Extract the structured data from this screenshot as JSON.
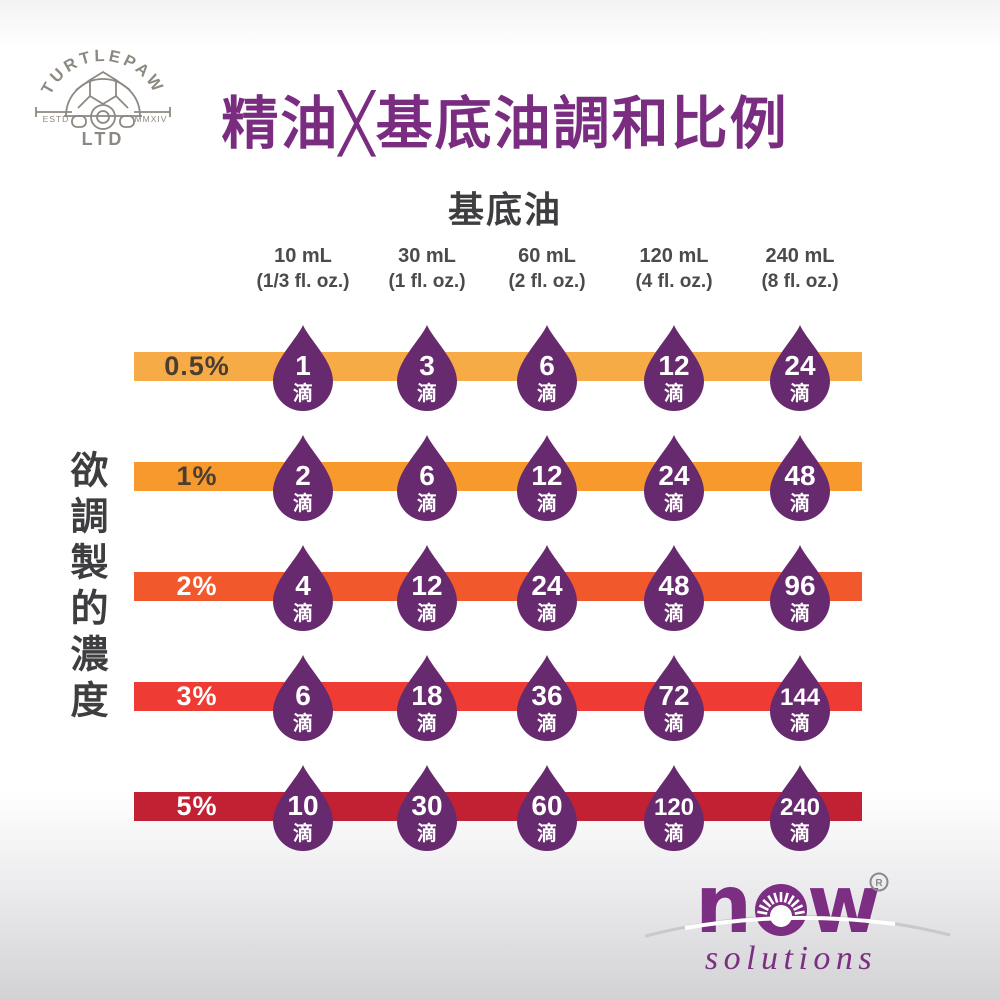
{
  "brand": {
    "turtlepaw": {
      "arc_text": "TURTLEPAW",
      "estd": "ESTD",
      "year": "MMXIV",
      "ltd": "LTD",
      "line_color": "#8d8881"
    },
    "now": {
      "wordmark": "now",
      "registered": "R",
      "subtext": "solutions",
      "color": "#7b2e82"
    }
  },
  "title": {
    "text": "精油╳基底油調和比例",
    "color": "#7a2c81"
  },
  "chart_data": {
    "type": "table",
    "title": "精油╳基底油調和比例",
    "column_group_label": "基底油",
    "row_group_label": "欲調製的濃度",
    "unit_suffix": "滴",
    "drop_color": "#682a6f",
    "columns": [
      {
        "volume": "10 mL",
        "fl_oz": "(1/3 fl. oz.)"
      },
      {
        "volume": "30 mL",
        "fl_oz": "(1 fl. oz.)"
      },
      {
        "volume": "60 mL",
        "fl_oz": "(2 fl. oz.)"
      },
      {
        "volume": "120 mL",
        "fl_oz": "(4 fl. oz.)"
      },
      {
        "volume": "240 mL",
        "fl_oz": "(8 fl. oz.)"
      }
    ],
    "rows": [
      {
        "concentration": "0.5%",
        "drops": [
          1,
          3,
          6,
          12,
          24
        ],
        "bar_color": "#f7ab47",
        "label_color": "#4a3e32"
      },
      {
        "concentration": "1%",
        "drops": [
          2,
          6,
          12,
          24,
          48
        ],
        "bar_color": "#f8992e",
        "label_color": "#4a3e32"
      },
      {
        "concentration": "2%",
        "drops": [
          4,
          12,
          24,
          48,
          96
        ],
        "bar_color": "#f1592d",
        "label_color": "#ffffff"
      },
      {
        "concentration": "3%",
        "drops": [
          6,
          18,
          36,
          72,
          144
        ],
        "bar_color": "#ee3c34",
        "label_color": "#ffffff"
      },
      {
        "concentration": "5%",
        "drops": [
          10,
          30,
          60,
          120,
          240
        ],
        "bar_color": "#c22134",
        "label_color": "#ffffff"
      }
    ]
  }
}
